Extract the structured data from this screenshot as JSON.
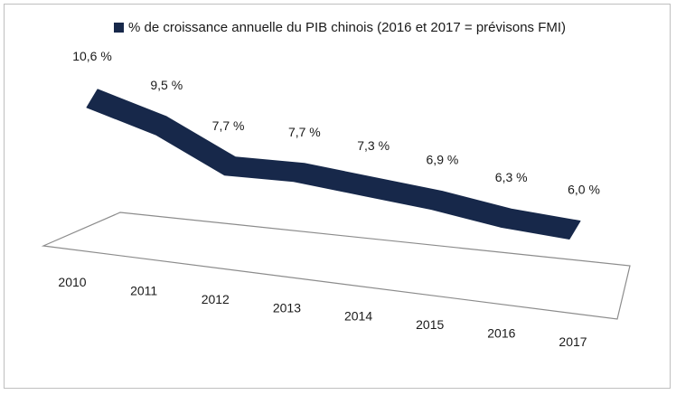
{
  "chart_data": {
    "type": "line",
    "style": "3d-ribbon",
    "categories": [
      "2010",
      "2011",
      "2012",
      "2013",
      "2014",
      "2015",
      "2016",
      "2017"
    ],
    "series": [
      {
        "name": "% de croissance annuelle du PIB chinois (2016 et 2017 = prévisons FMI)",
        "values": [
          10.6,
          9.5,
          7.7,
          7.7,
          7.3,
          6.9,
          6.3,
          6.0
        ],
        "labels": [
          "10,6 %",
          "9,5 %",
          "7,7 %",
          "7,7 %",
          "7,3 %",
          "6,9 %",
          "6,3 %",
          "6,0 %"
        ],
        "color": "#17284a"
      }
    ],
    "legend_position": "top",
    "grid": false,
    "axis_color": "#8c8c8c",
    "background": "#ffffff"
  }
}
